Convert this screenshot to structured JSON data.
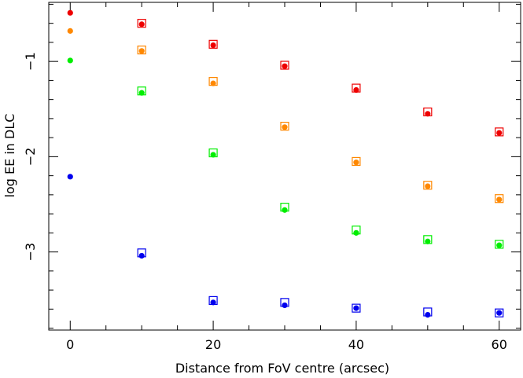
{
  "chart_data": {
    "type": "scatter",
    "title": "",
    "xlabel": "Distance from FoV centre (arcsec)",
    "ylabel": "log EE in DLC",
    "xlim": [
      -3,
      63
    ],
    "ylim": [
      -3.82,
      -0.38
    ],
    "xticks": [
      0,
      20,
      40,
      60
    ],
    "xtick_labels": [
      "0",
      "20",
      "40",
      "60"
    ],
    "yticks": [
      -1,
      -2,
      -3
    ],
    "ytick_labels": [
      "−1",
      "−2",
      "−3"
    ],
    "grid": false,
    "legend": "none",
    "series": [
      {
        "color": "#ee0000",
        "circles": {
          "x": [
            0,
            10,
            20,
            30,
            40,
            50,
            60
          ],
          "y": [
            -0.49,
            -0.61,
            -0.83,
            -1.05,
            -1.3,
            -1.55,
            -1.75
          ]
        },
        "squares": {
          "x": [
            10,
            20,
            30,
            40,
            50,
            60
          ],
          "y": [
            -0.6,
            -0.82,
            -1.04,
            -1.28,
            -1.53,
            -1.74
          ]
        }
      },
      {
        "color": "#ff8800",
        "circles": {
          "x": [
            0,
            10,
            20,
            30,
            40,
            50,
            60
          ],
          "y": [
            -0.68,
            -0.89,
            -1.23,
            -1.69,
            -2.06,
            -2.31,
            -2.45
          ]
        },
        "squares": {
          "x": [
            10,
            20,
            30,
            40,
            50,
            60
          ],
          "y": [
            -0.88,
            -1.21,
            -1.68,
            -2.05,
            -2.3,
            -2.44
          ]
        }
      },
      {
        "color": "#00ee00",
        "circles": {
          "x": [
            0,
            10,
            20,
            30,
            40,
            50,
            60
          ],
          "y": [
            -0.99,
            -1.33,
            -1.98,
            -2.56,
            -2.8,
            -2.89,
            -2.93
          ]
        },
        "squares": {
          "x": [
            10,
            20,
            30,
            40,
            50,
            60
          ],
          "y": [
            -1.31,
            -1.96,
            -2.53,
            -2.77,
            -2.87,
            -2.92
          ]
        }
      },
      {
        "color": "#0000ee",
        "circles": {
          "x": [
            0,
            10,
            20,
            30,
            40,
            50,
            60
          ],
          "y": [
            -2.21,
            -3.04,
            -3.53,
            -3.56,
            -3.59,
            -3.66,
            -3.64
          ]
        },
        "squares": {
          "x": [
            10,
            20,
            30,
            40,
            50,
            60
          ],
          "y": [
            -3.01,
            -3.51,
            -3.53,
            -3.59,
            -3.63,
            -3.64
          ]
        }
      }
    ]
  }
}
